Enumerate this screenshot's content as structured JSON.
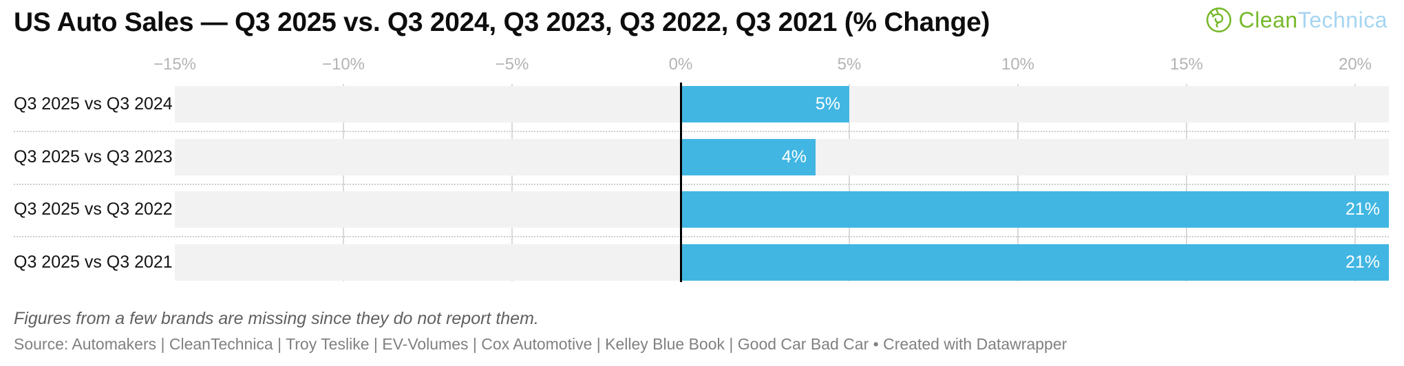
{
  "header": {
    "title": "US Auto Sales — Q3 2025 vs. Q3 2024, Q3 2023, Q3 2022, Q3 2021 (% Change)",
    "logo": {
      "icon": "cleantechnica-plug-icon",
      "green_text": "Clean",
      "blue_text": "Technica",
      "green_color": "#76b82a",
      "blue_color": "#a6d5f2"
    }
  },
  "chart_data": {
    "type": "bar",
    "orientation": "horizontal",
    "title": "US Auto Sales — Q3 2025 vs. Q3 2024, Q3 2023, Q3 2022, Q3 2021 (% Change)",
    "categories": [
      "Q3 2025 vs Q3 2024",
      "Q3 2025 vs Q3 2023",
      "Q3 2025 vs Q3 2022",
      "Q3 2025 vs Q3 2021"
    ],
    "values": [
      5,
      4,
      21,
      21
    ],
    "value_labels": [
      "5%",
      "4%",
      "21%",
      "21%"
    ],
    "xlabel": "",
    "ylabel": "",
    "unit": "%",
    "axis": {
      "min": -15,
      "max": 21,
      "tick_step": 5,
      "ticks": [
        -15,
        -10,
        -5,
        0,
        5,
        10,
        15,
        20
      ],
      "tick_labels": [
        "−15%",
        "−10%",
        "−5%",
        "0%",
        "5%",
        "10%",
        "15%",
        "20%"
      ]
    },
    "grid": true,
    "legend": "none",
    "colors": {
      "bar": "#41b6e2",
      "track": "#f2f2f2",
      "gridline": "#dadada",
      "zero_line": "#000000",
      "separator": "#cccccc",
      "axis_label": "#b3b3b3",
      "value_label": "#ffffff",
      "category_label": "#141414"
    }
  },
  "footer": {
    "note": "Figures from a few brands are missing since they do not report them.",
    "source": "Source: Automakers | CleanTechnica | Troy Teslike | EV-Volumes | Cox Automotive | Kelley Blue Book | Good Car Bad Car",
    "separator": " • ",
    "attribution": "Created with Datawrapper"
  }
}
